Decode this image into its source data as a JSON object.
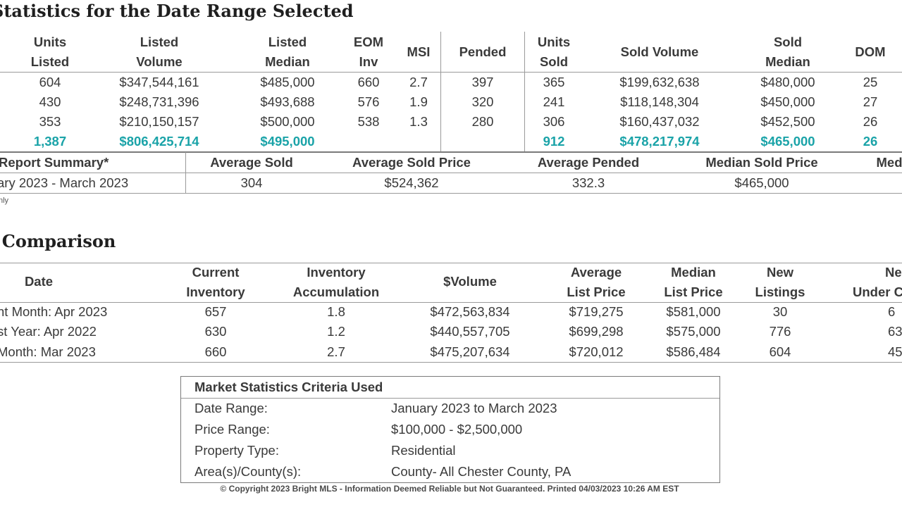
{
  "section1": {
    "title": "Statistics for the Date Range Selected",
    "headers": [
      [
        "Units",
        "Listed"
      ],
      [
        "Listed",
        "Volume"
      ],
      [
        "Listed",
        "Median"
      ],
      [
        "EOM",
        "Inv"
      ],
      [
        "MSI"
      ],
      [
        "Pended"
      ],
      [
        "Units",
        "Sold"
      ],
      [
        "Sold Volume"
      ],
      [
        "Sold",
        "Median"
      ],
      [
        "DOM"
      ]
    ],
    "rows": [
      [
        "604",
        "$347,544,161",
        "$485,000",
        "660",
        "2.7",
        "397",
        "365",
        "$199,632,638",
        "$480,000",
        "25"
      ],
      [
        "430",
        "$248,731,396",
        "$493,688",
        "576",
        "1.9",
        "320",
        "241",
        "$118,148,304",
        "$450,000",
        "27"
      ],
      [
        "353",
        "$210,150,157",
        "$500,000",
        "538",
        "1.3",
        "280",
        "306",
        "$160,437,032",
        "$452,500",
        "26"
      ]
    ],
    "totals": [
      "1,387",
      "$806,425,714",
      "$495,000",
      "",
      "",
      "",
      "912",
      "$478,217,974",
      "$465,000",
      "26"
    ]
  },
  "summary": {
    "headers": [
      "Report Summary*",
      "Average Sold",
      "Average Sold Price",
      "Average Pended",
      "Median Sold Price",
      "Med"
    ],
    "row": [
      "ary 2023 - March 2023",
      "304",
      "$524,362",
      "332.3",
      "$465,000",
      ""
    ],
    "footnote": "nly"
  },
  "section2": {
    "title": "Comparison",
    "headers": [
      [
        "Date"
      ],
      [
        "Current",
        "Inventory"
      ],
      [
        "Inventory",
        "Accumulation"
      ],
      [
        "$Volume"
      ],
      [
        "Average",
        "List Price"
      ],
      [
        "Median",
        "List Price"
      ],
      [
        "New",
        "Listings"
      ],
      [
        "Ne",
        "Under C"
      ]
    ],
    "rows": [
      [
        "nt Month: Apr 2023",
        "657",
        "1.8",
        "$472,563,834",
        "$719,275",
        "$581,000",
        "30",
        "6"
      ],
      [
        "st Year: Apr 2022",
        "630",
        "1.2",
        "$440,557,705",
        "$699,298",
        "$575,000",
        "776",
        "63"
      ],
      [
        " Month: Mar 2023",
        "660",
        "2.7",
        "$475,207,634",
        "$720,012",
        "$586,484",
        "604",
        "45"
      ]
    ]
  },
  "criteria": {
    "title": "Market Statistics Criteria Used",
    "rows": [
      {
        "label": "Date Range:",
        "value": "January 2023 to March 2023"
      },
      {
        "label": "Price Range:",
        "value": "$100,000 - $2,500,000"
      },
      {
        "label": "Property Type:",
        "value": "Residential"
      },
      {
        "label": "Area(s)/County(s):",
        "value": "County- All Chester County, PA"
      }
    ]
  },
  "footer": {
    "copyright": "© Copyright 2023 Bright MLS - Information Deemed Reliable but Not Guaranteed. Printed 04/03/2023 10:26 AM EST"
  },
  "colors": {
    "accent_teal": "#1aa3a8",
    "text": "#3a3a3a",
    "heading": "#1f1f1f",
    "rule": "#9a9a9a"
  }
}
